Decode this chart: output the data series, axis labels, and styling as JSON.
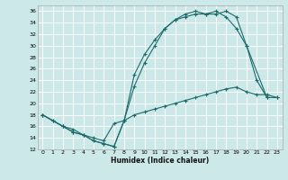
{
  "xlabel": "Humidex (Indice chaleur)",
  "bg_color": "#cce8e8",
  "grid_color": "#ffffff",
  "line_color": "#1a6b6b",
  "xlim": [
    -0.5,
    23.5
  ],
  "ylim": [
    12,
    37
  ],
  "xticks": [
    0,
    1,
    2,
    3,
    4,
    5,
    6,
    7,
    8,
    9,
    10,
    11,
    12,
    13,
    14,
    15,
    16,
    17,
    18,
    19,
    20,
    21,
    22,
    23
  ],
  "yticks": [
    12,
    14,
    16,
    18,
    20,
    22,
    24,
    26,
    28,
    30,
    32,
    34,
    36
  ],
  "line1_x": [
    0,
    1,
    2,
    3,
    4,
    5,
    6,
    7,
    8,
    9,
    10,
    11,
    12,
    13,
    14,
    15,
    16,
    17,
    18,
    19,
    20,
    22
  ],
  "line1_y": [
    18,
    17,
    16,
    15,
    14.5,
    13.5,
    13,
    12.5,
    17,
    25,
    28.5,
    31,
    33,
    34.5,
    35.5,
    36,
    35.5,
    35.5,
    36,
    35,
    30,
    21
  ],
  "line2_x": [
    0,
    2,
    3,
    4,
    5,
    6,
    7,
    8,
    9,
    10,
    11,
    12,
    13,
    14,
    15,
    16,
    17,
    18,
    19,
    20,
    21,
    22,
    23
  ],
  "line2_y": [
    18,
    16,
    15,
    14.5,
    13.5,
    13,
    12.5,
    17,
    23,
    27,
    30,
    33,
    34.5,
    35,
    35.5,
    35.5,
    36,
    35,
    33,
    30,
    24,
    21,
    21
  ],
  "line3_x": [
    0,
    1,
    2,
    3,
    4,
    5,
    6,
    7,
    8,
    9,
    10,
    11,
    12,
    13,
    14,
    15,
    16,
    17,
    18,
    19,
    20,
    21,
    22,
    23
  ],
  "line3_y": [
    18,
    17,
    16,
    15.5,
    14.5,
    14,
    13.5,
    16.5,
    17,
    18,
    18.5,
    19,
    19.5,
    20,
    20.5,
    21,
    21.5,
    22,
    22.5,
    22.8,
    22,
    21.5,
    21.5,
    21
  ]
}
